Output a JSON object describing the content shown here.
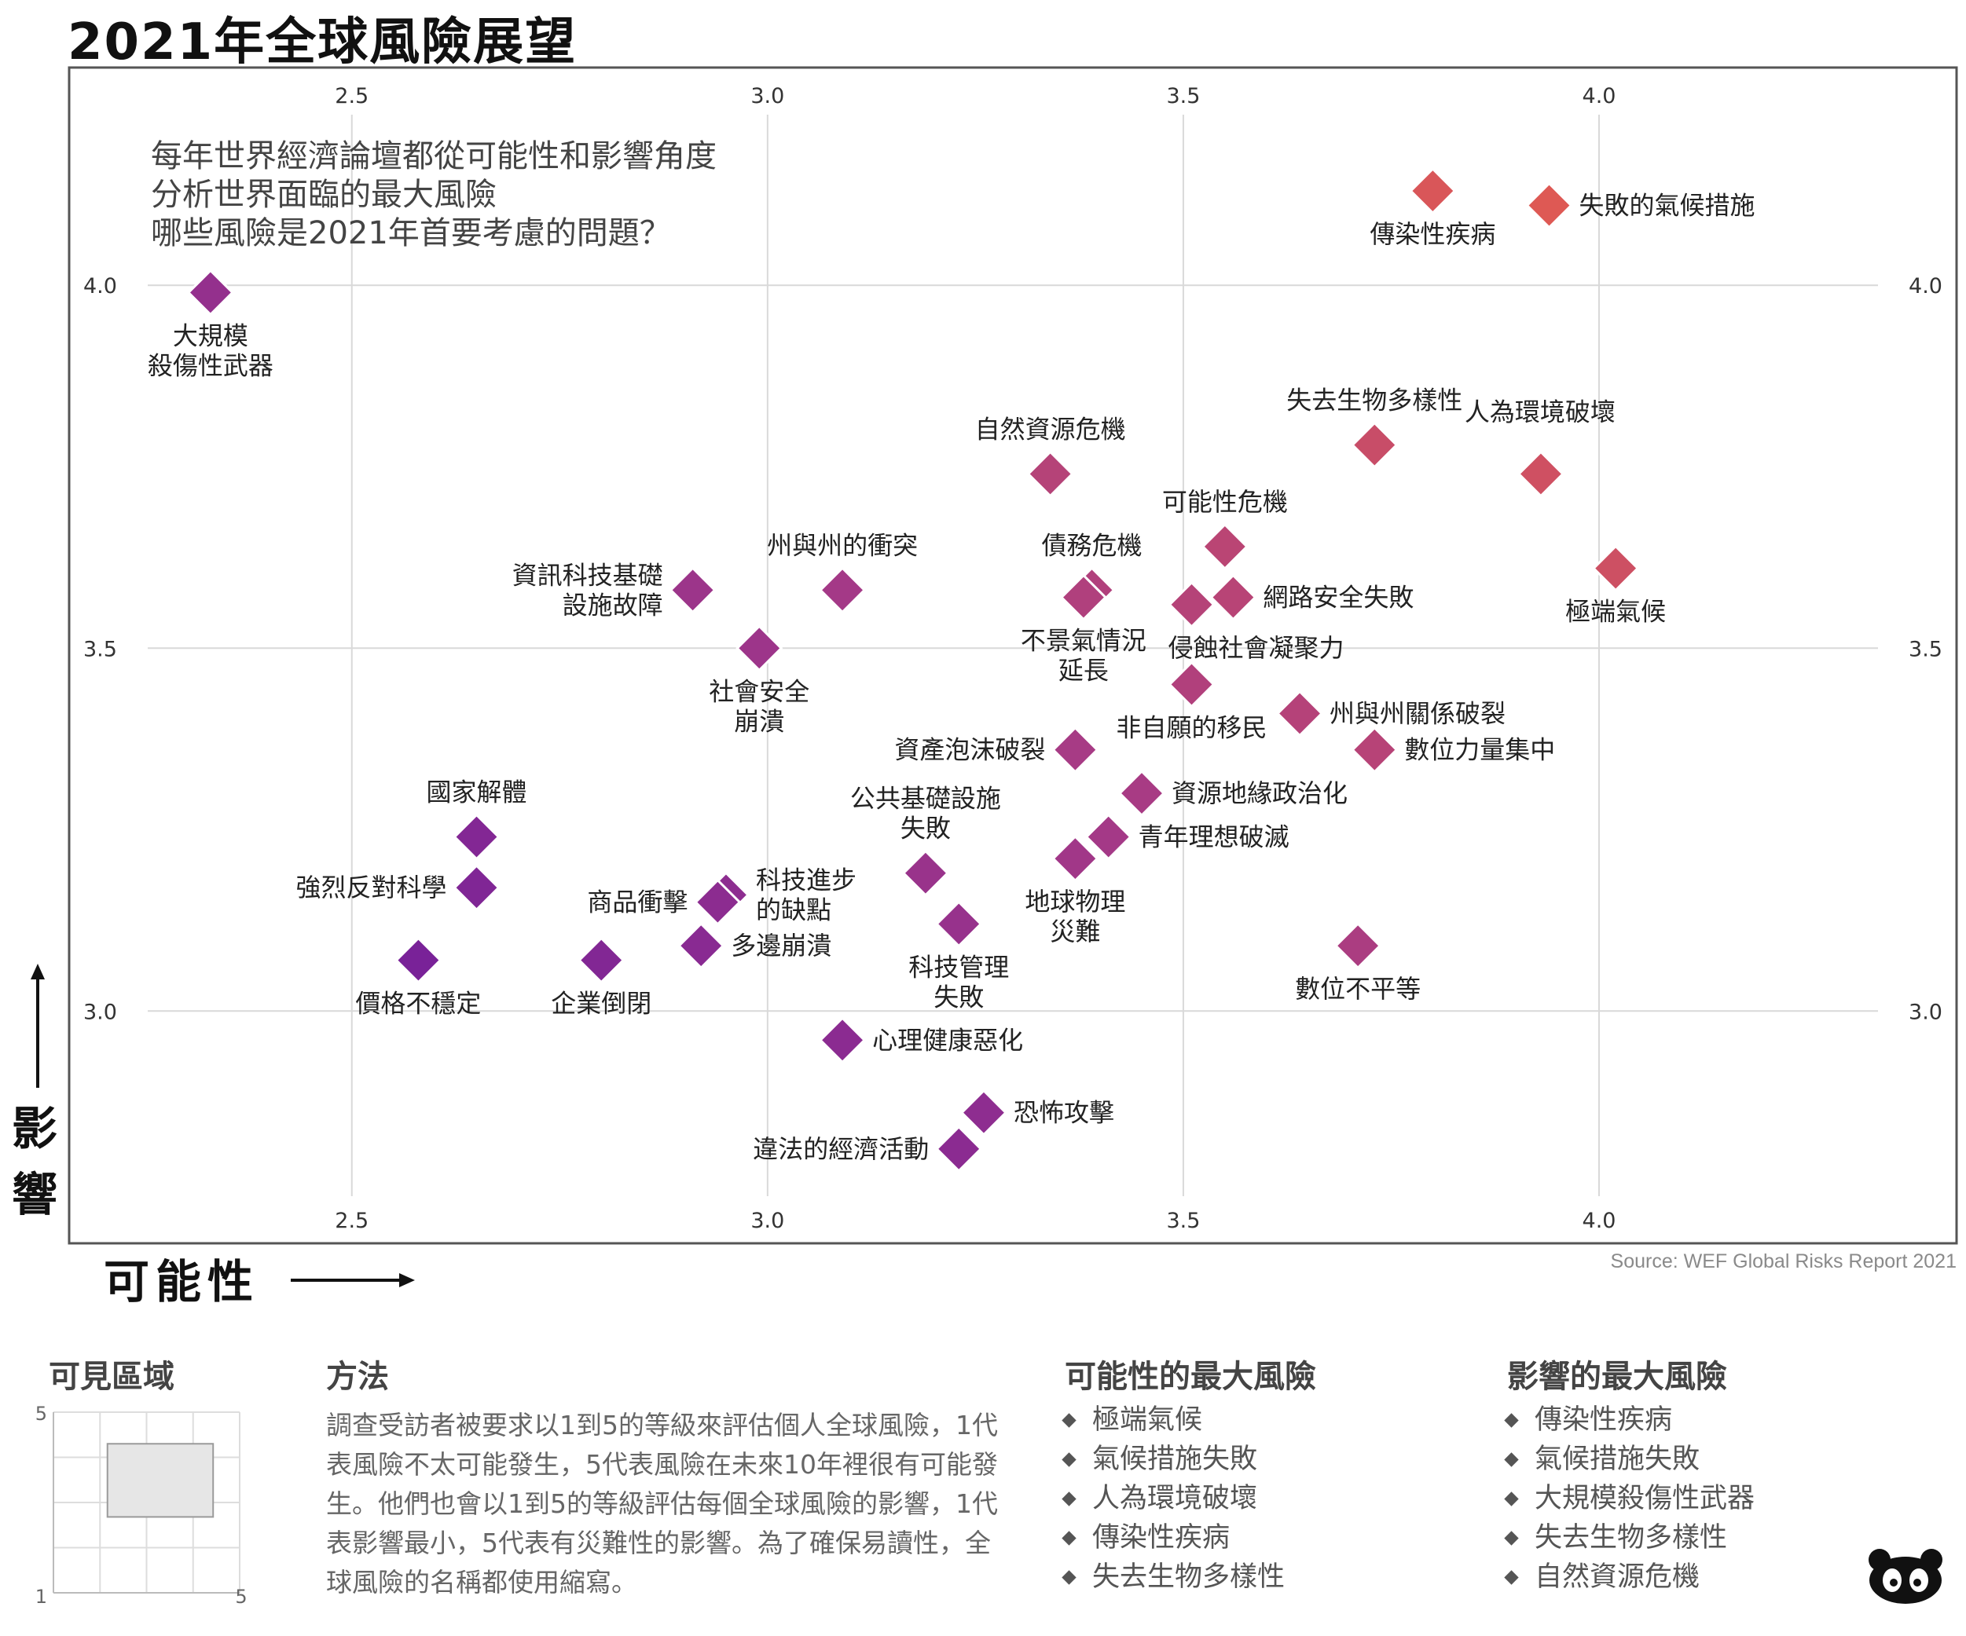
{
  "title": "2021年全球風險展望",
  "intro": [
    "每年世界經濟論壇都從可能性和影響角度",
    "分析世界面臨的最大風險",
    "哪些風險是2021年首要考慮的問題？"
  ],
  "y_axis_label": "影響",
  "x_axis_label": "可能性",
  "source": "Source: WEF Global Risks Report 2021",
  "colors": {
    "high": "#e05a52",
    "mid": "#a63a86",
    "low": "#6a1a9e",
    "grid": "#d9d9d9",
    "frame": "#555555"
  },
  "chart_data": {
    "type": "scatter",
    "title": "2021年全球風險展望",
    "xlabel": "可能性",
    "ylabel": "影響",
    "xlim": [
      2.16,
      4.43
    ],
    "ylim": [
      2.68,
      4.3
    ],
    "xticks": [
      "2.5",
      "3.0",
      "3.5",
      "4.0"
    ],
    "yticks": [
      "3.0",
      "3.5",
      "4.0"
    ],
    "grid": true,
    "points": [
      {
        "label": "失敗的氣候措施",
        "x": 3.94,
        "y": 4.11,
        "label_pos": "right"
      },
      {
        "label": "傳染性疾病",
        "x": 3.8,
        "y": 4.13,
        "label_pos": "below"
      },
      {
        "label": "大規模\n殺傷性武器",
        "x": 2.33,
        "y": 3.99,
        "label_pos": "below"
      },
      {
        "label": "失去生物多樣性",
        "x": 3.73,
        "y": 3.78,
        "label_pos": "above"
      },
      {
        "label": "人為環境破壞",
        "x": 3.93,
        "y": 3.74,
        "label_pos": "above-right"
      },
      {
        "label": "自然資源危機",
        "x": 3.34,
        "y": 3.74,
        "label_pos": "above"
      },
      {
        "label": "極端氣候",
        "x": 4.02,
        "y": 3.61,
        "label_pos": "below"
      },
      {
        "label": "可能性危機",
        "x": 3.55,
        "y": 3.64,
        "label_pos": "above"
      },
      {
        "label": "網路安全失敗",
        "x": 3.56,
        "y": 3.57,
        "label_pos": "right"
      },
      {
        "label": "債務危機",
        "x": 3.39,
        "y": 3.58,
        "label_pos": "above"
      },
      {
        "label": "不景氣情況\n延長",
        "x": 3.38,
        "y": 3.57,
        "label_pos": "below"
      },
      {
        "label": "侵蝕社會凝聚力",
        "x": 3.51,
        "y": 3.56,
        "label_pos": "below-right"
      },
      {
        "label": "資訊科技基礎\n設施故障",
        "x": 2.91,
        "y": 3.58,
        "label_pos": "left"
      },
      {
        "label": "州與州的衝突",
        "x": 3.09,
        "y": 3.58,
        "label_pos": "above"
      },
      {
        "label": "社會安全\n崩潰",
        "x": 2.99,
        "y": 3.5,
        "label_pos": "below"
      },
      {
        "label": "非自願的移民",
        "x": 3.51,
        "y": 3.45,
        "label_pos": "below"
      },
      {
        "label": "州與州關係破裂",
        "x": 3.64,
        "y": 3.41,
        "label_pos": "right"
      },
      {
        "label": "數位力量集中",
        "x": 3.73,
        "y": 3.36,
        "label_pos": "right"
      },
      {
        "label": "資產泡沫破裂",
        "x": 3.37,
        "y": 3.36,
        "label_pos": "left"
      },
      {
        "label": "資源地緣政治化",
        "x": 3.45,
        "y": 3.3,
        "label_pos": "right"
      },
      {
        "label": "青年理想破滅",
        "x": 3.41,
        "y": 3.24,
        "label_pos": "right"
      },
      {
        "label": "地球物理\n災難",
        "x": 3.37,
        "y": 3.21,
        "label_pos": "below"
      },
      {
        "label": "公共基礎設施\n失敗",
        "x": 3.19,
        "y": 3.19,
        "label_pos": "above"
      },
      {
        "label": "國家解體",
        "x": 2.65,
        "y": 3.24,
        "label_pos": "above"
      },
      {
        "label": "強烈反對科學",
        "x": 2.65,
        "y": 3.17,
        "label_pos": "left"
      },
      {
        "label": "科技進步\n的缺點",
        "x": 2.95,
        "y": 3.16,
        "label_pos": "right"
      },
      {
        "label": "商品衝擊",
        "x": 2.94,
        "y": 3.15,
        "label_pos": "left"
      },
      {
        "label": "科技管理\n失敗",
        "x": 3.23,
        "y": 3.12,
        "label_pos": "below"
      },
      {
        "label": "多邊崩潰",
        "x": 2.92,
        "y": 3.09,
        "label_pos": "right"
      },
      {
        "label": "數位不平等",
        "x": 3.71,
        "y": 3.09,
        "label_pos": "below"
      },
      {
        "label": "價格不穩定",
        "x": 2.58,
        "y": 3.07,
        "label_pos": "below"
      },
      {
        "label": "企業倒閉",
        "x": 2.8,
        "y": 3.07,
        "label_pos": "below"
      },
      {
        "label": "心理健康惡化",
        "x": 3.09,
        "y": 2.96,
        "label_pos": "right"
      },
      {
        "label": "恐怖攻擊",
        "x": 3.26,
        "y": 2.86,
        "label_pos": "right"
      },
      {
        "label": "違法的經濟活動",
        "x": 3.23,
        "y": 2.81,
        "label_pos": "left"
      }
    ]
  },
  "visible_region": {
    "title": "可見區域",
    "axis_min": "1",
    "axis_max": "5",
    "y_max": "5",
    "region_x": [
      2.16,
      4.43
    ],
    "region_y": [
      2.68,
      4.3
    ],
    "scale": [
      1,
      5
    ]
  },
  "method": {
    "title": "方法",
    "text": "調查受訪者被要求以1到5的等級來評估個人全球風險，1代表風險不太可能發生，5代表風險在未來10年裡很有可能發生。他們也會以1到5的等級評估每個全球風險的影響，1代表影響最小，5代表有災難性的影響。為了確保易讀性，全球風險的名稱都使用縮寫。"
  },
  "top_likelihood": {
    "title": "可能性的最大風險",
    "items": [
      "極端氣候",
      "氣候措施失敗",
      "人為環境破壞",
      "傳染性疾病",
      "失去生物多樣性"
    ]
  },
  "top_impact": {
    "title": "影響的最大風險",
    "items": [
      "傳染性疾病",
      "氣候措施失敗",
      "大規模殺傷性武器",
      "失去生物多樣性",
      "自然資源危機"
    ]
  }
}
